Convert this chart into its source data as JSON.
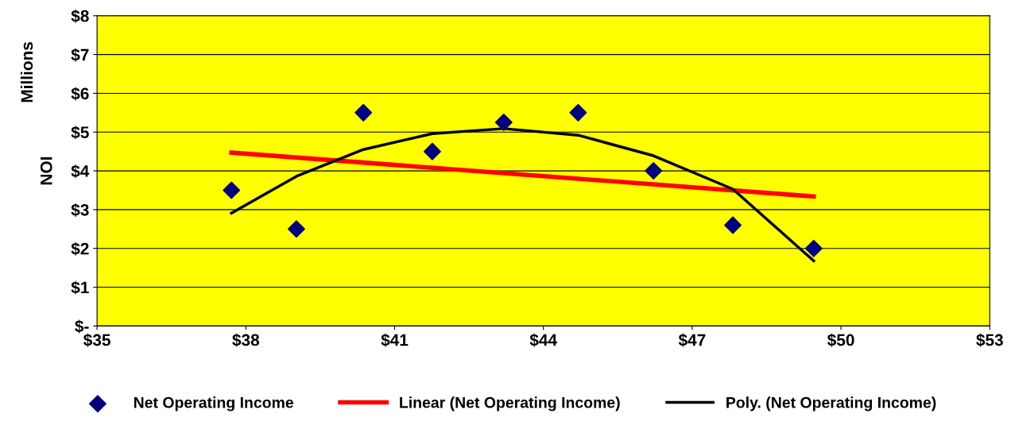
{
  "chart_data": {
    "type": "scatter",
    "ylabel": "NOI",
    "annotations": [
      "Millions"
    ],
    "xlim": [
      35,
      53
    ],
    "xticks": [
      {
        "value": 35,
        "label": "$35"
      },
      {
        "value": 38,
        "label": "$38"
      },
      {
        "value": 41,
        "label": "$41"
      },
      {
        "value": 44,
        "label": "$44"
      },
      {
        "value": 47,
        "label": "$47"
      },
      {
        "value": 50,
        "label": "$50"
      },
      {
        "value": 53,
        "label": "$53"
      }
    ],
    "ylim": [
      0,
      8
    ],
    "yticks": [
      {
        "value": 0,
        "label": "$-"
      },
      {
        "value": 1,
        "label": "$1"
      },
      {
        "value": 2,
        "label": "$2"
      },
      {
        "value": 3,
        "label": "$3"
      },
      {
        "value": 4,
        "label": "$4"
      },
      {
        "value": 5,
        "label": "$5"
      },
      {
        "value": 6,
        "label": "$6"
      },
      {
        "value": 7,
        "label": "$7"
      },
      {
        "value": 8,
        "label": "$8"
      }
    ],
    "grid": "y",
    "legend": "bottom",
    "series": [
      {
        "name": "Net Operating Income",
        "marker": "diamond",
        "color": "#000080",
        "x": [
          37.71,
          39.02,
          40.37,
          41.76,
          43.2,
          44.7,
          46.22,
          47.82,
          49.45
        ],
        "values": [
          3.5,
          2.5,
          5.5,
          4.5,
          5.25,
          5.5,
          4.0,
          2.6,
          2.0
        ]
      },
      {
        "name": "Linear (Net Operating Income)",
        "type": "line",
        "marker": "none",
        "color": "#ff0000",
        "x": [
          37.71,
          49.45
        ],
        "values": [
          4.47,
          3.34
        ]
      },
      {
        "name": "Poly. (Net Operating Income)",
        "type": "line",
        "marker": "none",
        "color": "#000000",
        "x": [
          37.71,
          39.02,
          40.37,
          41.76,
          43.2,
          44.7,
          46.22,
          47.82,
          49.45
        ],
        "values": [
          2.91,
          3.86,
          4.55,
          4.96,
          5.09,
          4.92,
          4.39,
          3.53,
          1.68
        ]
      }
    ]
  }
}
